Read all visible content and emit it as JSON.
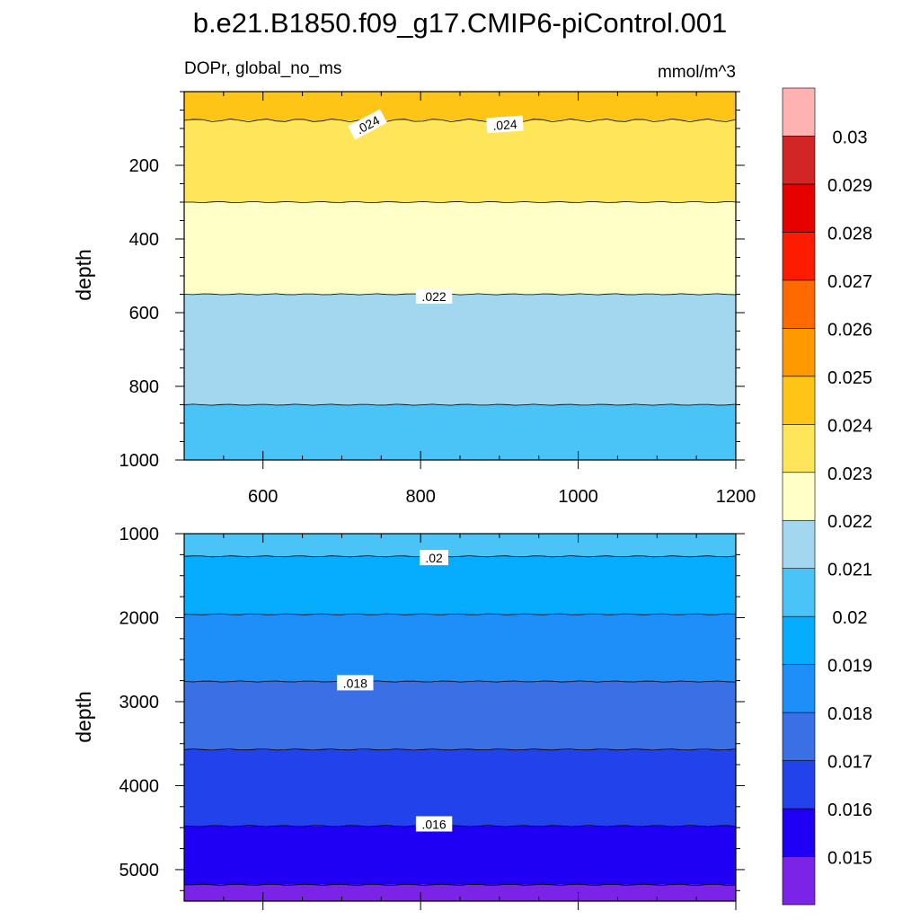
{
  "title": "b.e21.B1850.f09_g17.CMIP6-piControl.001",
  "colorbar": {
    "boundaries": [
      0.015,
      0.016,
      0.017,
      0.018,
      0.019,
      0.02,
      0.021,
      0.022,
      0.023,
      0.024,
      0.025,
      0.026,
      0.027,
      0.028,
      0.029,
      0.03
    ],
    "labels": [
      "0.015",
      "0.016",
      "0.017",
      "0.018",
      "0.019",
      "0.02",
      "0.021",
      "0.022",
      "0.023",
      "0.024",
      "0.025",
      "0.026",
      "0.027",
      "0.028",
      "0.029",
      "0.03"
    ],
    "colors": [
      "#7b24e8",
      "#2000f4",
      "#2242ec",
      "#3a6fe6",
      "#1e8ef8",
      "#06adfe",
      "#4ac3f6",
      "#a3d7f0",
      "#ffffc8",
      "#ffe55a",
      "#fec516",
      "#fe9900",
      "#fe6a00",
      "#fe1c00",
      "#e60000",
      "#d22626",
      "#feb2b2"
    ]
  },
  "chart_data": [
    {
      "type": "contour",
      "left_label": "DOPr, global_no_ms",
      "right_label": "mmol/m^3",
      "ylabel": "depth",
      "xlabel": "",
      "xlim": [
        500,
        1200
      ],
      "ylim": [
        1000,
        0
      ],
      "x_ticks": [
        600,
        800,
        1000,
        1200
      ],
      "x_tick_labels": [
        "600",
        "800",
        "1000",
        "1200"
      ],
      "y_ticks": [
        200,
        400,
        600,
        800,
        1000
      ],
      "y_tick_labels": [
        "200",
        "400",
        "600",
        "800",
        "1000"
      ],
      "bands": [
        {
          "from": 0,
          "to": 78,
          "color": "#fec516"
        },
        {
          "from": 78,
          "to": 300,
          "color": "#ffe55a"
        },
        {
          "from": 300,
          "to": 550,
          "color": "#ffffc8"
        },
        {
          "from": 550,
          "to": 850,
          "color": "#a3d7f0"
        },
        {
          "from": 850,
          "to": 1000,
          "color": "#4ac3f6"
        }
      ],
      "contour_labels": [
        {
          "text": ".024",
          "x": 733,
          "y": 90,
          "rotate": -28
        },
        {
          "text": ".024",
          "x": 907,
          "y": 90,
          "rotate": -4
        },
        {
          "text": ".022",
          "x": 817,
          "y": 556,
          "rotate": 0
        }
      ]
    },
    {
      "type": "contour",
      "ylabel": "depth",
      "xlabel": "",
      "xlim": [
        500,
        1200
      ],
      "ylim": [
        5375,
        1000
      ],
      "x_ticks": [
        600,
        800,
        1000,
        1200
      ],
      "y_ticks": [
        1000,
        2000,
        3000,
        4000,
        5000
      ],
      "y_tick_labels": [
        "1000",
        "2000",
        "3000",
        "4000",
        "5000"
      ],
      "bands": [
        {
          "from": 1000,
          "to": 1270,
          "color": "#4ac3f6"
        },
        {
          "from": 1270,
          "to": 1960,
          "color": "#06adfe"
        },
        {
          "from": 1960,
          "to": 2760,
          "color": "#1e8ef8"
        },
        {
          "from": 2760,
          "to": 3570,
          "color": "#3a6fe6"
        },
        {
          "from": 3570,
          "to": 4480,
          "color": "#2242ec"
        },
        {
          "from": 4480,
          "to": 5180,
          "color": "#2000f4"
        },
        {
          "from": 5180,
          "to": 5375,
          "color": "#7b24e8"
        }
      ],
      "contour_labels": [
        {
          "text": ".02",
          "x": 817,
          "y": 1290,
          "rotate": 0
        },
        {
          "text": ".018",
          "x": 717,
          "y": 2780,
          "rotate": 0
        },
        {
          "text": ".016",
          "x": 817,
          "y": 4460,
          "rotate": 0
        }
      ]
    }
  ]
}
